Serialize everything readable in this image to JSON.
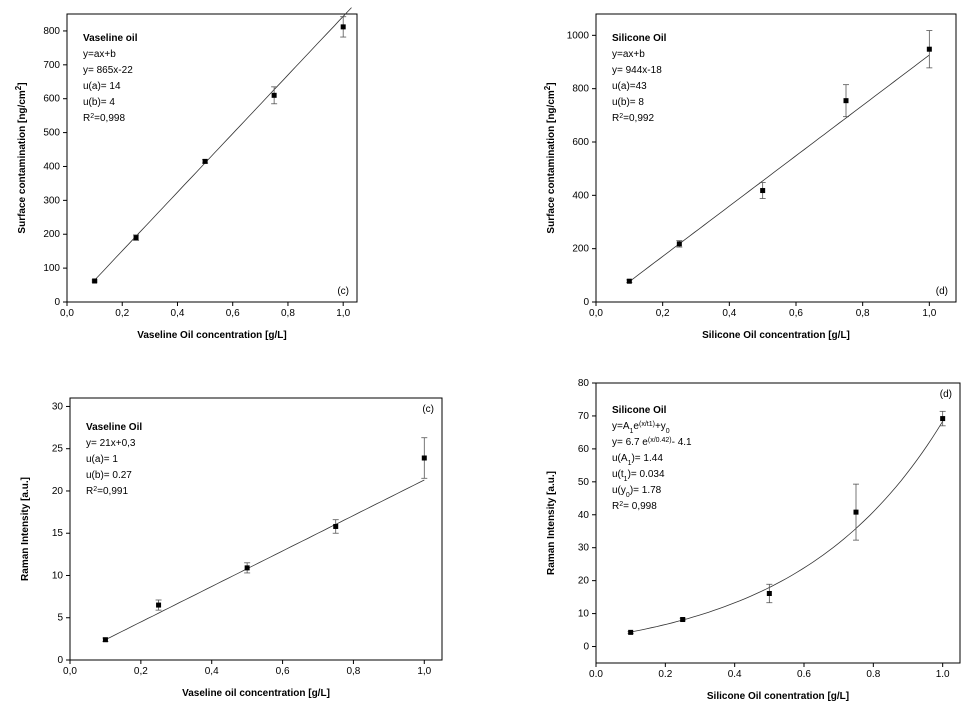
{
  "chart_data": [
    {
      "type": "scatter",
      "title": "Vaseline oil",
      "panel_label": "(c)",
      "panel_label_corner": "bottom-right",
      "x_label": [
        {
          "text": "Vaseline Oil concentration [g/L]"
        }
      ],
      "y_label": [
        {
          "text": "Surface contamination [ng/cm"
        },
        {
          "text": "2",
          "shift": "super"
        },
        {
          "text": "]"
        }
      ],
      "annotation": [
        [
          {
            "text": "y=ax+b"
          }
        ],
        [
          {
            "text": "y= 865x-22"
          }
        ],
        [
          {
            "text": "u(a)= 14"
          }
        ],
        [
          {
            "text": "u(b)= 4"
          }
        ],
        [
          {
            "text": "R"
          },
          {
            "text": "2",
            "shift": "super"
          },
          {
            "text": "=0,998"
          }
        ]
      ],
      "x": [
        0.1,
        0.25,
        0.5,
        0.75,
        1.0
      ],
      "values": [
        62,
        190,
        415,
        610,
        812
      ],
      "errors": [
        3,
        8,
        5,
        25,
        30
      ],
      "fit": {
        "type": "linear",
        "a": 865,
        "b": -22,
        "range": [
          0.1,
          1.03
        ]
      },
      "xlim": [
        0,
        1.05
      ],
      "ylim": [
        0,
        850
      ],
      "xticks": [
        {
          "value": 0,
          "label": "0,0"
        },
        {
          "value": 0.2,
          "label": "0,2"
        },
        {
          "value": 0.4,
          "label": "0,4"
        },
        {
          "value": 0.6,
          "label": "0,6"
        },
        {
          "value": 0.8,
          "label": "0,8"
        },
        {
          "value": 1.0,
          "label": "1,0"
        }
      ],
      "yticks": [
        0,
        100,
        200,
        300,
        400,
        500,
        600,
        700,
        800
      ],
      "color": "#000000"
    },
    {
      "type": "scatter",
      "title": "Silicone Oil",
      "panel_label": "(d)",
      "panel_label_corner": "bottom-right",
      "x_label": [
        {
          "text": "Silicone Oil concentration [g/L]"
        }
      ],
      "y_label": [
        {
          "text": "Surface contamination [ng/cm"
        },
        {
          "text": "2",
          "shift": "super"
        },
        {
          "text": "]"
        }
      ],
      "annotation": [
        [
          {
            "text": "y=ax+b"
          }
        ],
        [
          {
            "text": "y= 944x-18"
          }
        ],
        [
          {
            "text": "u(a)=43"
          }
        ],
        [
          {
            "text": "u(b)= 8"
          }
        ],
        [
          {
            "text": "R"
          },
          {
            "text": "2",
            "shift": "super"
          },
          {
            "text": "=0,992"
          }
        ]
      ],
      "x": [
        0.1,
        0.25,
        0.5,
        0.75,
        1.0
      ],
      "values": [
        78,
        218,
        418,
        755,
        948
      ],
      "errors": [
        5,
        12,
        30,
        60,
        70
      ],
      "fit": {
        "type": "linear",
        "a": 944,
        "b": -18,
        "range": [
          0.1,
          1.0
        ]
      },
      "xlim": [
        0,
        1.08
      ],
      "ylim": [
        0,
        1080
      ],
      "xticks": [
        {
          "value": 0,
          "label": "0,0"
        },
        {
          "value": 0.2,
          "label": "0,2"
        },
        {
          "value": 0.4,
          "label": "0,4"
        },
        {
          "value": 0.6,
          "label": "0,6"
        },
        {
          "value": 0.8,
          "label": "0,8"
        },
        {
          "value": 1.0,
          "label": "1,0"
        }
      ],
      "yticks": [
        0,
        200,
        400,
        600,
        800,
        1000
      ],
      "color": "#000000"
    },
    {
      "type": "scatter",
      "title": "Vaseline Oil",
      "panel_label": "(c)",
      "panel_label_corner": "top-right",
      "x_label": [
        {
          "text": "Vaseline oil concentration [g/L]"
        }
      ],
      "y_label": [
        {
          "text": "Raman Intensity [a.u.]"
        }
      ],
      "annotation": [
        [
          {
            "text": "y= 21x+0,3"
          }
        ],
        [
          {
            "text": "u(a)= 1"
          }
        ],
        [
          {
            "text": "u(b)= 0.27"
          }
        ],
        [
          {
            "text": "R"
          },
          {
            "text": "2",
            "shift": "super"
          },
          {
            "text": "=0,991"
          }
        ]
      ],
      "x": [
        0.1,
        0.25,
        0.5,
        0.75,
        1.0
      ],
      "values": [
        2.4,
        6.5,
        10.9,
        15.8,
        23.9
      ],
      "errors": [
        0.2,
        0.6,
        0.6,
        0.8,
        2.4
      ],
      "fit": {
        "type": "linear",
        "a": 21,
        "b": 0.3,
        "range": [
          0.1,
          1.0
        ]
      },
      "xlim": [
        0,
        1.05
      ],
      "ylim": [
        0,
        31
      ],
      "xticks": [
        {
          "value": 0,
          "label": "0,0"
        },
        {
          "value": 0.2,
          "label": "0,2"
        },
        {
          "value": 0.4,
          "label": "0,4"
        },
        {
          "value": 0.6,
          "label": "0,6"
        },
        {
          "value": 0.8,
          "label": "0,8"
        },
        {
          "value": 1.0,
          "label": "1,0"
        }
      ],
      "yticks": [
        0,
        5,
        10,
        15,
        20,
        25,
        30
      ],
      "color": "#000000"
    },
    {
      "type": "scatter",
      "title": "Silicone Oil",
      "panel_label": "(d)",
      "panel_label_corner": "top-right",
      "x_label": [
        {
          "text": "Silicone Oil conentration [g/L]"
        }
      ],
      "y_label": [
        {
          "text": "Raman Intensity [a.u.]"
        }
      ],
      "annotation": [
        [
          {
            "text": "y=A"
          },
          {
            "text": "1",
            "shift": "sub"
          },
          {
            "text": "e"
          },
          {
            "text": "(x/t1)",
            "shift": "super"
          },
          {
            "text": "+y"
          },
          {
            "text": "0",
            "shift": "sub"
          }
        ],
        [
          {
            "text": "y= 6.7 e"
          },
          {
            "text": "(x/0.42)",
            "shift": "super"
          },
          {
            "text": "- 4.1"
          }
        ],
        [
          {
            "text": "u(A"
          },
          {
            "text": "1",
            "shift": "sub"
          },
          {
            "text": ")= 1.44"
          }
        ],
        [
          {
            "text": "u(t"
          },
          {
            "text": "1",
            "shift": "sub"
          },
          {
            "text": ")= 0.034"
          }
        ],
        [
          {
            "text": "u(y"
          },
          {
            "text": "0",
            "shift": "sub"
          },
          {
            "text": ")= 1.78"
          }
        ],
        [
          {
            "text": "R"
          },
          {
            "text": "2",
            "shift": "super"
          },
          {
            "text": "= 0,998"
          }
        ]
      ],
      "x": [
        0.1,
        0.25,
        0.5,
        0.75,
        1.0
      ],
      "values": [
        4.3,
        8.2,
        16.1,
        40.8,
        69.2
      ],
      "errors": [
        0.3,
        0.4,
        2.8,
        8.5,
        2.2
      ],
      "fit": {
        "type": "exponential",
        "A1": 6.7,
        "t1": 0.42,
        "y0": -4.1,
        "range": [
          0.1,
          1.0
        ]
      },
      "xlim": [
        0,
        1.05
      ],
      "ylim": [
        -5,
        80
      ],
      "xticks": [
        {
          "value": 0,
          "label": "0.0"
        },
        {
          "value": 0.2,
          "label": "0.2"
        },
        {
          "value": 0.4,
          "label": "0.4"
        },
        {
          "value": 0.6,
          "label": "0.6"
        },
        {
          "value": 0.8,
          "label": "0.8"
        },
        {
          "value": 1.0,
          "label": "1.0"
        }
      ],
      "yticks": [
        0,
        10,
        20,
        30,
        40,
        50,
        60,
        70,
        80
      ],
      "color": "#000000"
    }
  ]
}
